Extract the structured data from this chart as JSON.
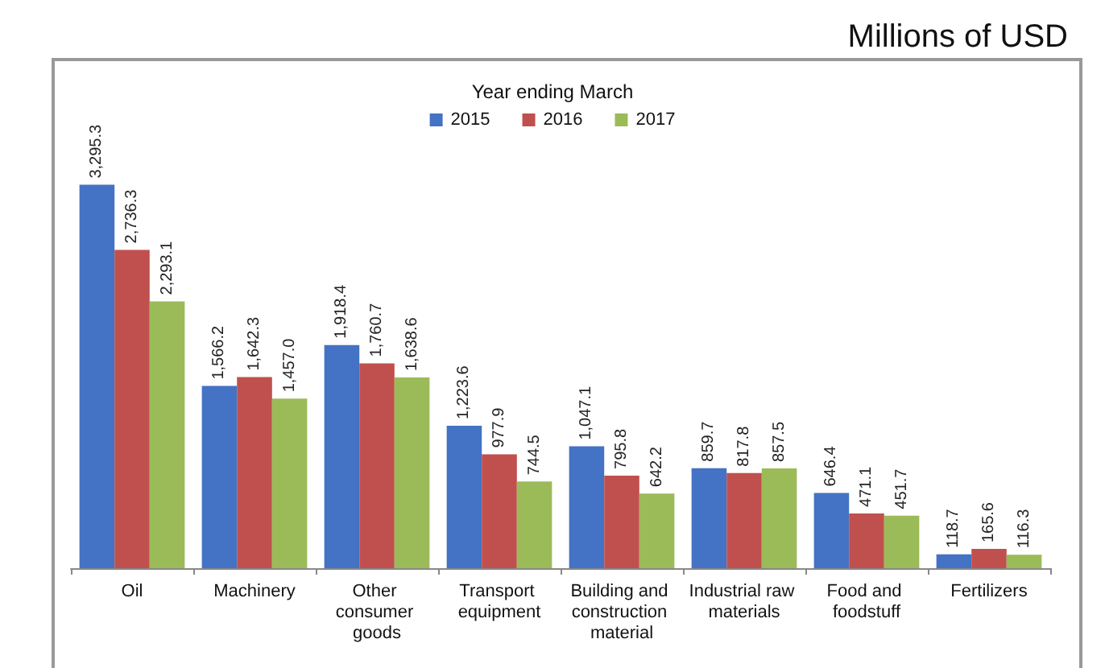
{
  "chart_data": {
    "type": "bar",
    "subtitle": "Millions of USD",
    "legend_title": "Year ending March",
    "legend": "top",
    "categories": [
      "Oil",
      "Machinery",
      "Other consumer goods",
      "Transport equipment",
      "Building and construction material",
      "Industrial raw materials",
      "Food and foodstuff",
      "Fertilizers"
    ],
    "series": [
      {
        "name": "2015",
        "color": "#4472c4",
        "values": [
          3295.3,
          1566.2,
          1918.4,
          1223.6,
          1047.1,
          859.7,
          646.4,
          118.7
        ],
        "value_labels": [
          "3,295.3",
          "1,566.2",
          "1,918.4",
          "1,223.6",
          "1,047.1",
          "859.7",
          "646.4",
          "118.7"
        ]
      },
      {
        "name": "2016",
        "color": "#c0504d",
        "values": [
          2736.3,
          1642.3,
          1760.7,
          977.9,
          795.8,
          817.8,
          471.1,
          165.6
        ],
        "value_labels": [
          "2,736.3",
          "1,642.3",
          "1,760.7",
          "977.9",
          "795.8",
          "817.8",
          "471.1",
          "165.6"
        ]
      },
      {
        "name": "2017",
        "color": "#9bbb59",
        "values": [
          2293.1,
          1457.0,
          1638.6,
          744.5,
          642.2,
          857.5,
          451.7,
          116.3
        ],
        "value_labels": [
          "2,293.1",
          "1,457.0",
          "1,638.6",
          "744.5",
          "642.2",
          "857.5",
          "451.7",
          "116.3"
        ]
      }
    ],
    "tick_labels": "x"
  }
}
